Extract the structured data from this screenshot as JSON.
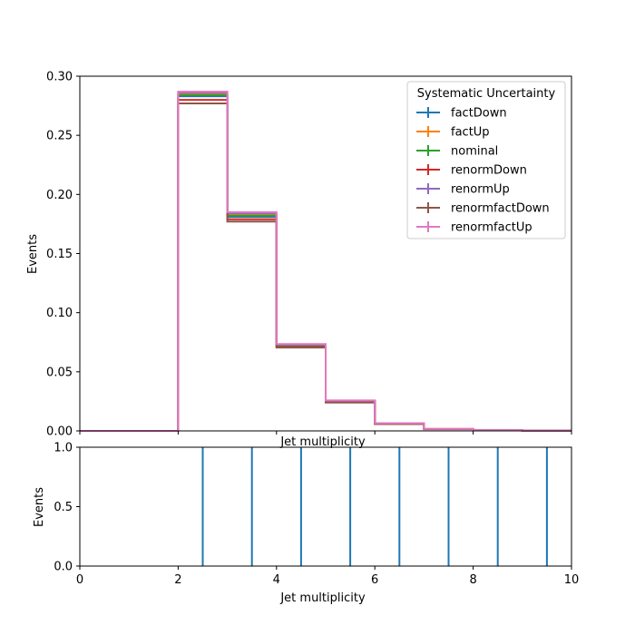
{
  "chart_data": [
    {
      "type": "histogram-step",
      "xlabel": "Jet multiplicity",
      "ylabel": "Events",
      "xlim": [
        0,
        10
      ],
      "ylim": [
        0,
        0.3
      ],
      "yticks": [
        0.0,
        0.05,
        0.1,
        0.15,
        0.2,
        0.25,
        0.3
      ],
      "ytick_labels": [
        "0.00",
        "0.05",
        "0.10",
        "0.15",
        "0.20",
        "0.25",
        "0.30"
      ],
      "xticks": [
        0,
        2,
        4,
        6,
        8,
        10
      ],
      "bin_edges": [
        0,
        1,
        2,
        3,
        4,
        5,
        6,
        7,
        8,
        9,
        10
      ],
      "legend": {
        "title": "Systematic Uncertainty",
        "placement": "top-right"
      },
      "series": [
        {
          "name": "factDown",
          "color": "#1f77b4",
          "values": [
            0,
            0,
            0.283,
            0.181,
            0.072,
            0.025,
            0.006,
            0.0015,
            0.0005,
            0.0001
          ]
        },
        {
          "name": "factUp",
          "color": "#ff7f0e",
          "values": [
            0,
            0,
            0.285,
            0.183,
            0.0725,
            0.0252,
            0.0062,
            0.0016,
            0.0005,
            0.0001
          ]
        },
        {
          "name": "nominal",
          "color": "#2ca02c",
          "values": [
            0,
            0,
            0.284,
            0.182,
            0.0722,
            0.0251,
            0.0061,
            0.0015,
            0.0005,
            0.0001
          ]
        },
        {
          "name": "renormDown",
          "color": "#d62728",
          "values": [
            0,
            0,
            0.28,
            0.179,
            0.071,
            0.0245,
            0.006,
            0.0015,
            0.0005,
            0.0001
          ]
        },
        {
          "name": "renormUp",
          "color": "#9467bd",
          "values": [
            0,
            0,
            0.286,
            0.184,
            0.073,
            0.0255,
            0.0063,
            0.0016,
            0.0005,
            0.0001
          ]
        },
        {
          "name": "renormfactDown",
          "color": "#8c564b",
          "values": [
            0,
            0,
            0.277,
            0.177,
            0.0705,
            0.024,
            0.0058,
            0.0014,
            0.0005,
            0.0001
          ]
        },
        {
          "name": "renormfactUp",
          "color": "#e377c2",
          "values": [
            0,
            0,
            0.287,
            0.185,
            0.0735,
            0.0258,
            0.0064,
            0.0017,
            0.0006,
            0.0001
          ]
        }
      ]
    },
    {
      "type": "ratio-errorbars",
      "xlabel": "Jet multiplicity",
      "ylabel": "Events",
      "xlim": [
        0,
        10
      ],
      "ylim": [
        0,
        1.0
      ],
      "yticks": [
        0.0,
        0.5,
        1.0
      ],
      "ytick_labels": [
        "0.0",
        "0.5",
        "1.0"
      ],
      "xticks": [
        0,
        2,
        4,
        6,
        8,
        10
      ],
      "xtick_labels": [
        "0",
        "2",
        "4",
        "6",
        "8",
        "10"
      ],
      "color": "#1f77b4",
      "x": [
        2.5,
        3.5,
        4.5,
        5.5,
        6.5,
        7.5,
        8.5,
        9.5
      ],
      "y": [
        1.0,
        1.0,
        1.0,
        1.0,
        1.0,
        1.0,
        1.0,
        1.0
      ],
      "yerr": [
        1.0,
        1.0,
        1.0,
        1.0,
        1.0,
        1.0,
        1.0,
        1.0
      ]
    }
  ]
}
